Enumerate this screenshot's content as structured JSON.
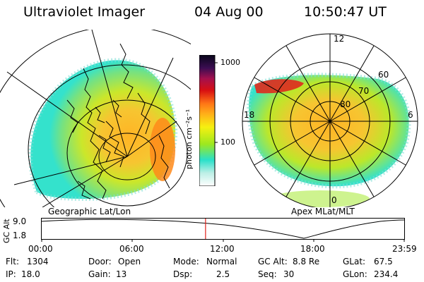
{
  "header": {
    "instrument": "Ultraviolet Imager",
    "date": "04 Aug 00",
    "time": "10:50:47 UT"
  },
  "left_map": {
    "caption": "Geographic Lat/Lon"
  },
  "right_map": {
    "caption": "Apex MLat/MLT",
    "mlt_labels": {
      "top": "12",
      "left": "18",
      "right": "6",
      "bottom": "0"
    },
    "mlat_labels": [
      "60",
      "70",
      "80"
    ]
  },
  "colorbar": {
    "unit_label": "photon cm⁻²s⁻¹",
    "ticks": [
      "1000",
      "100"
    ],
    "scale": "log",
    "colors": [
      "#ffffff",
      "#bdefe6",
      "#29e0c9",
      "#9de81f",
      "#f6f011",
      "#ffb019",
      "#ff7516",
      "#d80f12",
      "#a4104e",
      "#3c0d52",
      "#08061a"
    ]
  },
  "altitude_plot": {
    "ylabel": "GC Alt",
    "yticks": [
      "9.0",
      "1.8"
    ],
    "xticks": [
      "00:00",
      "06:00",
      "12:00",
      "18:00",
      "23:59"
    ],
    "current_time_hours": 10.847,
    "cursor_color": "#e0201a"
  },
  "footer": {
    "flt": {
      "label": "Flt:",
      "value": "1304"
    },
    "ip": {
      "label": "IP:",
      "value": "18.0"
    },
    "door": {
      "label": "Door:",
      "value": "Open"
    },
    "gain": {
      "label": "Gain:",
      "value": "13"
    },
    "mode": {
      "label": "Mode:",
      "value": "Normal"
    },
    "dsp": {
      "label": "Dsp:",
      "value": "2.5"
    },
    "gcalt": {
      "label": "GC Alt:",
      "value": "8.8 Re"
    },
    "seq": {
      "label": "Seq:",
      "value": "30"
    },
    "glat": {
      "label": "GLat:",
      "value": "67.5"
    },
    "glon": {
      "label": "GLon:",
      "value": "234.4"
    }
  }
}
